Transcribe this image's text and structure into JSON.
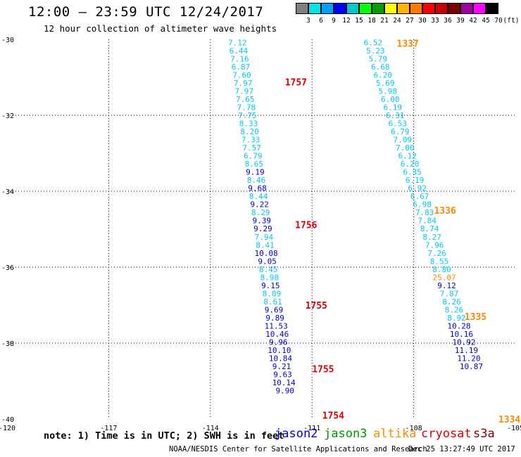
{
  "header": {
    "title": "12:00 – 23:59 UTC 12/24/2017",
    "subtitle": "12 hour collection of altimeter wave heights"
  },
  "colorbar": {
    "labels": [
      "3",
      "6",
      "9",
      "12",
      "15",
      "18",
      "21",
      "24",
      "27",
      "30",
      "33",
      "36",
      "39",
      "42",
      "45",
      "70",
      "(ft)"
    ],
    "colors": [
      "#7f7f7f",
      "#00e5e5",
      "#00a0ff",
      "#0000ff",
      "#00c8c8",
      "#00ff00",
      "#00a000",
      "#ffff00",
      "#ffb400",
      "#ff7800",
      "#ff0000",
      "#c80000",
      "#7a0000",
      "#a000a0",
      "#ff00ff",
      "#000000"
    ]
  },
  "footer": {
    "note": "note: 1) Time is in UTC; 2) SWH is in feet",
    "legend": [
      {
        "name": "jason2",
        "color": "#0000cc"
      },
      {
        "name": "jason3",
        "color": "#009900"
      },
      {
        "name": "altika",
        "color": "#ff8800"
      },
      {
        "name": "cryosat",
        "color": "#dd0000"
      },
      {
        "name": "s3a",
        "color": "#880000"
      }
    ],
    "credit": "NOAA/NESDIS Center for Satellite Applications and Research",
    "timestamp": "Dec 25 13:27:49 UTC 2017"
  },
  "colors": {
    "light_blue": "#00c8f0",
    "dark_blue": "#0000cc",
    "orange": "#ff8800",
    "red": "#dd0000"
  },
  "chart_data": {
    "type": "scatter",
    "title": "12:00 – 23:59 UTC 12/24/2017",
    "subtitle": "12 hour collection of altimeter wave heights",
    "xlabel": "",
    "ylabel": "",
    "xlim": [
      -120,
      -105
    ],
    "ylim": [
      -40,
      -30
    ],
    "x_ticks": [
      "-120",
      "-117",
      "-114",
      "-111",
      "-108",
      "-105"
    ],
    "y_ticks": [
      "-30",
      "-32",
      "-34",
      "-36",
      "-38",
      "-40"
    ],
    "grid": true,
    "tracks": [
      {
        "satellite": "cryosat",
        "x_start": -113.2,
        "x_end": -111.8,
        "y_start": -30.08,
        "y_step": 0.2133,
        "values": [
          {
            "v": "7.12",
            "c": "light"
          },
          {
            "v": "6.44",
            "c": "light"
          },
          {
            "v": "7.16",
            "c": "light"
          },
          {
            "v": "6.87",
            "c": "light"
          },
          {
            "v": "7.60",
            "c": "light"
          },
          {
            "v": "7.97",
            "c": "light"
          },
          {
            "v": "7.97",
            "c": "light"
          },
          {
            "v": "7.65",
            "c": "light"
          },
          {
            "v": "7.78",
            "c": "light"
          },
          {
            "v": "7.75",
            "c": "light"
          },
          {
            "v": "8.33",
            "c": "light"
          },
          {
            "v": "8.20",
            "c": "light"
          },
          {
            "v": "7.33",
            "c": "light"
          },
          {
            "v": "7.57",
            "c": "light"
          },
          {
            "v": "6.79",
            "c": "light"
          },
          {
            "v": "8.65",
            "c": "light"
          },
          {
            "v": "9.19",
            "c": "dark"
          },
          {
            "v": "8.46",
            "c": "light"
          },
          {
            "v": "9.68",
            "c": "dark"
          },
          {
            "v": "8.44",
            "c": "light"
          },
          {
            "v": "9.22",
            "c": "dark"
          },
          {
            "v": "8.29",
            "c": "light"
          },
          {
            "v": "9.39",
            "c": "dark"
          },
          {
            "v": "9.29",
            "c": "dark"
          },
          {
            "v": "7.94",
            "c": "light"
          },
          {
            "v": "8.41",
            "c": "light"
          },
          {
            "v": "10.08",
            "c": "dark"
          },
          {
            "v": "9.05",
            "c": "dark"
          },
          {
            "v": "8.45",
            "c": "light"
          },
          {
            "v": "8.98",
            "c": "light"
          },
          {
            "v": "9.15",
            "c": "dark"
          },
          {
            "v": "8.09",
            "c": "light"
          },
          {
            "v": "8.61",
            "c": "light"
          },
          {
            "v": "9.69",
            "c": "dark"
          },
          {
            "v": "9.89",
            "c": "dark"
          },
          {
            "v": "11.53",
            "c": "dark"
          },
          {
            "v": "10.46",
            "c": "dark"
          },
          {
            "v": "9.96",
            "c": "dark"
          },
          {
            "v": "10.10",
            "c": "dark"
          },
          {
            "v": "10.84",
            "c": "dark"
          },
          {
            "v": "9.21",
            "c": "dark"
          },
          {
            "v": "9.63",
            "c": "dark"
          },
          {
            "v": "10.14",
            "c": "dark"
          },
          {
            "v": "9.90",
            "c": "dark"
          }
        ],
        "time_labels": [
          {
            "text": "1757",
            "x": -111.8,
            "y": -31.12
          },
          {
            "text": "1756",
            "x": -111.5,
            "y": -34.88
          },
          {
            "text": "1755",
            "x": -111.2,
            "y": -37.0
          },
          {
            "text": "1755",
            "x": -111.0,
            "y": -38.68
          },
          {
            "text": "1754",
            "x": -110.7,
            "y": -39.9
          }
        ]
      },
      {
        "satellite": "altika",
        "x_start": -109.2,
        "x_end": -106.3,
        "y_start": -30.08,
        "y_step": 0.2133,
        "values": [
          {
            "v": "6.52",
            "c": "light"
          },
          {
            "v": "5.23",
            "c": "light"
          },
          {
            "v": "5.79",
            "c": "light"
          },
          {
            "v": "6.68",
            "c": "light"
          },
          {
            "v": "6.20",
            "c": "light"
          },
          {
            "v": "5.69",
            "c": "light"
          },
          {
            "v": "5.98",
            "c": "light"
          },
          {
            "v": "6.00",
            "c": "light"
          },
          {
            "v": "6.19",
            "c": "light"
          },
          {
            "v": "6.31",
            "c": "light"
          },
          {
            "v": "6.53",
            "c": "light"
          },
          {
            "v": "6.79",
            "c": "light"
          },
          {
            "v": "7.09",
            "c": "light"
          },
          {
            "v": "7.00",
            "c": "light"
          },
          {
            "v": "6.12",
            "c": "light"
          },
          {
            "v": "6.20",
            "c": "light"
          },
          {
            "v": "6.35",
            "c": "light"
          },
          {
            "v": "6.19",
            "c": "light"
          },
          {
            "v": "6.92",
            "c": "light"
          },
          {
            "v": "6.67",
            "c": "light"
          },
          {
            "v": "6.98",
            "c": "light"
          },
          {
            "v": "7.83",
            "c": "light"
          },
          {
            "v": "7.84",
            "c": "light"
          },
          {
            "v": "8.74",
            "c": "light"
          },
          {
            "v": "8.27",
            "c": "light"
          },
          {
            "v": "7.96",
            "c": "light"
          },
          {
            "v": "7.26",
            "c": "light"
          },
          {
            "v": "8.55",
            "c": "light"
          },
          {
            "v": "8.80",
            "c": "light"
          },
          {
            "v": "25.07",
            "c": "orange"
          },
          {
            "v": "9.12",
            "c": "dark"
          },
          {
            "v": "7.87",
            "c": "light"
          },
          {
            "v": "8.26",
            "c": "light"
          },
          {
            "v": "8.26",
            "c": "light"
          },
          {
            "v": "8.92",
            "c": "light"
          },
          {
            "v": "10.28",
            "c": "dark"
          },
          {
            "v": "10.16",
            "c": "dark"
          },
          {
            "v": "10.92",
            "c": "dark"
          },
          {
            "v": "11.19",
            "c": "dark"
          },
          {
            "v": "11.20",
            "c": "dark"
          },
          {
            "v": "10.87",
            "c": "dark"
          }
        ],
        "time_labels": [
          {
            "text": "1337",
            "x": -108.5,
            "y": -30.1
          },
          {
            "text": "1336",
            "x": -107.4,
            "y": -34.5
          },
          {
            "text": "1335",
            "x": -106.5,
            "y": -37.3
          },
          {
            "text": "1334",
            "x": -105.5,
            "y": -40.0
          }
        ]
      }
    ]
  }
}
